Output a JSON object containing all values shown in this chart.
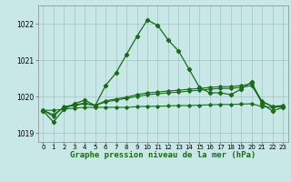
{
  "background_color": "#c8e8e8",
  "grid_color": "#b0c8c8",
  "line_color": "#1a6b1a",
  "title": "Graphe pression niveau de la mer (hPa)",
  "title_fontsize": 6.5,
  "ylim": [
    1018.75,
    1022.5
  ],
  "xlim": [
    -0.5,
    23.5
  ],
  "yticks": [
    1019,
    1020,
    1021,
    1022
  ],
  "xticks": [
    0,
    1,
    2,
    3,
    4,
    5,
    6,
    7,
    8,
    9,
    10,
    11,
    12,
    13,
    14,
    15,
    16,
    17,
    18,
    19,
    20,
    21,
    22,
    23
  ],
  "series": [
    {
      "x": [
        0,
        1,
        2,
        3,
        4,
        5,
        6,
        7,
        8,
        9,
        10,
        11,
        12,
        13,
        14,
        15,
        16,
        17,
        18,
        19,
        20,
        21,
        22,
        23
      ],
      "y": [
        1019.6,
        1019.3,
        1019.65,
        1019.8,
        1019.9,
        1019.75,
        1020.3,
        1020.65,
        1021.15,
        1021.65,
        1022.1,
        1021.95,
        1021.55,
        1021.25,
        1020.75,
        1020.25,
        1020.1,
        1020.1,
        1020.05,
        1020.2,
        1020.4,
        1019.8,
        1019.6,
        1019.7
      ]
    },
    {
      "x": [
        0,
        1,
        2,
        3,
        4,
        5,
        6,
        7,
        8,
        9,
        10,
        11,
        12,
        13,
        14,
        15,
        16,
        17,
        18,
        19,
        20,
        21,
        22,
        23
      ],
      "y": [
        1019.62,
        1019.62,
        1019.65,
        1019.68,
        1019.7,
        1019.7,
        1019.7,
        1019.7,
        1019.7,
        1019.72,
        1019.73,
        1019.73,
        1019.74,
        1019.75,
        1019.75,
        1019.76,
        1019.77,
        1019.78,
        1019.78,
        1019.79,
        1019.8,
        1019.72,
        1019.7,
        1019.72
      ]
    },
    {
      "x": [
        0,
        1,
        2,
        3,
        4,
        5,
        6,
        7,
        8,
        9,
        10,
        11,
        12,
        13,
        14,
        15,
        16,
        17,
        18,
        19,
        20,
        21,
        22,
        23
      ],
      "y": [
        1019.62,
        1019.5,
        1019.7,
        1019.75,
        1019.8,
        1019.75,
        1019.85,
        1019.9,
        1019.95,
        1020.0,
        1020.05,
        1020.07,
        1020.1,
        1020.12,
        1020.15,
        1020.17,
        1020.2,
        1020.22,
        1020.22,
        1020.25,
        1020.3,
        1019.85,
        1019.72,
        1019.74
      ]
    },
    {
      "x": [
        0,
        1,
        2,
        3,
        4,
        5,
        6,
        7,
        8,
        9,
        10,
        11,
        12,
        13,
        14,
        15,
        16,
        17,
        18,
        19,
        20,
        21,
        22,
        23
      ],
      "y": [
        1019.62,
        1019.45,
        1019.72,
        1019.77,
        1019.82,
        1019.76,
        1019.88,
        1019.93,
        1019.98,
        1020.05,
        1020.1,
        1020.12,
        1020.15,
        1020.17,
        1020.2,
        1020.22,
        1020.25,
        1020.27,
        1020.27,
        1020.3,
        1020.35,
        1019.87,
        1019.73,
        1019.75
      ]
    }
  ]
}
